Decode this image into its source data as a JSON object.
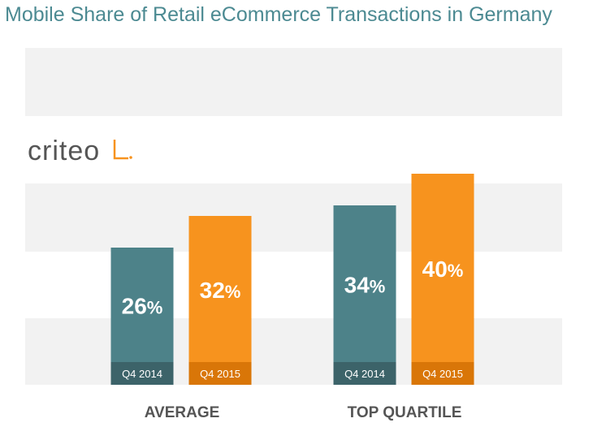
{
  "title": "Mobile Share of Retail eCommerce Transactions in Germany",
  "logo_text": "criteo",
  "colors": {
    "q4_2014": "#4d8289",
    "q4_2014_label_bg": "#3c6369",
    "q4_2015": "#f7931e",
    "q4_2015_label_bg": "#d97608",
    "band": "#f2f2f2",
    "title": "#4c8a92",
    "group_label": "#555555"
  },
  "chart_data": {
    "type": "bar",
    "title": "Mobile Share of Retail eCommerce Transactions in Germany",
    "categories": [
      "AVERAGE",
      "TOP QUARTILE"
    ],
    "series": [
      {
        "name": "Q4 2014",
        "values": [
          26,
          34
        ],
        "labels": [
          "26%",
          "34%"
        ]
      },
      {
        "name": "Q4 2015",
        "values": [
          32,
          40
        ],
        "labels": [
          "32%",
          "40%"
        ]
      }
    ],
    "ylim": [
      0,
      45
    ],
    "grid": false
  }
}
